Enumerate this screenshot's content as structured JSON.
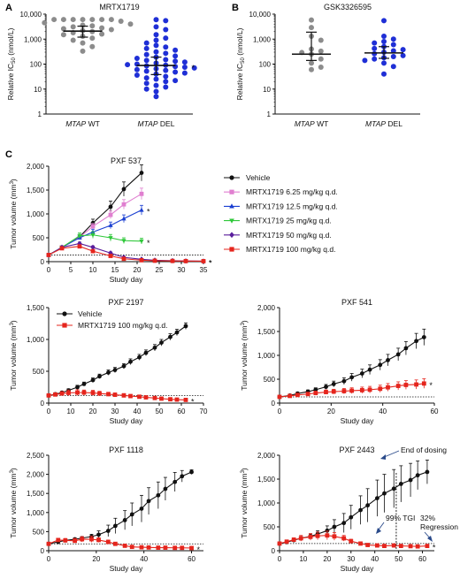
{
  "colors": {
    "black": "#111111",
    "gray": "#8c8c8c",
    "blue": "#1f2fd6",
    "pink": "#e07fd0",
    "blue2": "#1a3fd1",
    "green": "#2fc83a",
    "purple": "#5a1e9c",
    "red": "#e5251d"
  },
  "panel_labels": [
    "A",
    "B",
    "C"
  ],
  "annotations": {
    "end_of_dosing": "End of dosing",
    "tgi": "99% TGI",
    "regression_1": "32%",
    "regression_2": "Regression",
    "star": "*"
  },
  "chart_data": [
    {
      "id": "A",
      "type": "scatter",
      "title": "MRTX1719",
      "ylabel": "Relative IC50 (nmol/L)",
      "yscale": "log",
      "ylim": [
        1,
        10000
      ],
      "yticks": [
        "1",
        "10",
        "100",
        "1,000",
        "10,000"
      ],
      "categories": [
        {
          "label": "MTAP WT",
          "italic": "MTAP",
          "rest": " WT",
          "color": "gray",
          "median": 2100,
          "q1": 1200,
          "q3": 3300,
          "points": [
            6100,
            6100,
            6100,
            6100,
            6100,
            6100,
            6100,
            5200,
            4500,
            4000,
            3600,
            3400,
            3100,
            2800,
            2600,
            2400,
            2200,
            2000,
            1800,
            1600,
            1500,
            1300,
            1100,
            900,
            700,
            500,
            330
          ]
        },
        {
          "label": "MTAP DEL",
          "italic": "MTAP",
          "rest": " DEL",
          "color": "blue",
          "median": 88,
          "q1": 38,
          "q3": 190,
          "sig": "*",
          "points": [
            6000,
            5500,
            3100,
            2400,
            1500,
            1100,
            900,
            700,
            560,
            480,
            420,
            360,
            310,
            270,
            240,
            210,
            190,
            170,
            150,
            140,
            130,
            120,
            110,
            100,
            95,
            90,
            85,
            80,
            75,
            70,
            65,
            60,
            56,
            52,
            48,
            44,
            40,
            36,
            32,
            28,
            25,
            22,
            20,
            17,
            14,
            12,
            10,
            8,
            5
          ]
        }
      ]
    },
    {
      "id": "B",
      "type": "scatter",
      "title": "GSK3326595",
      "ylabel": "Relative IC50 (nmol/L)",
      "yscale": "log",
      "ylim": [
        1,
        10000
      ],
      "yticks": [
        "1",
        "10",
        "100",
        "1,000",
        "10,000"
      ],
      "categories": [
        {
          "label": "MTAP WT",
          "italic": "MTAP",
          "rest": " WT",
          "color": "gray",
          "median": 250,
          "q1": 140,
          "q3": 1900,
          "points": [
            5800,
            2900,
            1300,
            900,
            400,
            330,
            290,
            250,
            160,
            110,
            75,
            60
          ]
        },
        {
          "label": "MTAP DEL",
          "italic": "MTAP",
          "rest": " DEL",
          "color": "blue",
          "median": 280,
          "q1": 170,
          "q3": 500,
          "points": [
            5500,
            1300,
            1000,
            800,
            700,
            600,
            500,
            420,
            380,
            340,
            300,
            260,
            220,
            200,
            180,
            160,
            140,
            110,
            80,
            40
          ]
        }
      ]
    },
    {
      "id": "C1",
      "type": "line",
      "title": "PXF 537",
      "xlabel": "Study day",
      "ylabel": "Tumor volume (mm3)",
      "xlim": [
        0,
        35
      ],
      "xticks": [
        0,
        5,
        10,
        15,
        20,
        25,
        30,
        35
      ],
      "ylim": [
        0,
        2000
      ],
      "yticks": [
        "0",
        "500",
        "1,000",
        "1,500",
        "2,000"
      ],
      "series": [
        {
          "name": "Vehicle",
          "color": "black",
          "marker": "circle",
          "x": [
            0,
            3,
            7,
            10,
            14,
            17,
            21
          ],
          "y": [
            140,
            300,
            520,
            810,
            1150,
            1520,
            1860
          ],
          "err": [
            20,
            30,
            50,
            80,
            120,
            150,
            170
          ]
        },
        {
          "name": "MRTX1719 6.25 mg/kg q.d.",
          "color": "pink",
          "marker": "square",
          "x": [
            0,
            3,
            7,
            10,
            14,
            17,
            21
          ],
          "y": [
            140,
            300,
            510,
            740,
            980,
            1200,
            1420
          ],
          "err": [
            20,
            25,
            40,
            60,
            80,
            100,
            120
          ]
        },
        {
          "name": "MRTX1719 12.5 mg/kg q.d.",
          "color": "blue2",
          "marker": "triangle",
          "x": [
            0,
            3,
            7,
            10,
            14,
            17,
            21
          ],
          "y": [
            140,
            300,
            500,
            620,
            760,
            900,
            1080
          ],
          "err": [
            20,
            25,
            40,
            60,
            70,
            80,
            100
          ],
          "sig": "*"
        },
        {
          "name": "MRTX1719 25 mg/kg q.d.",
          "color": "green",
          "marker": "tri-down",
          "x": [
            0,
            3,
            7,
            10,
            14,
            17,
            21
          ],
          "y": [
            140,
            300,
            540,
            560,
            500,
            440,
            430
          ],
          "err": [
            20,
            30,
            60,
            70,
            70,
            60,
            60
          ],
          "sig": "*"
        },
        {
          "name": "MRTX1719 50 mg/kg q.d.",
          "color": "purple",
          "marker": "diamond",
          "x": [
            0,
            3,
            7,
            10,
            14,
            17,
            21,
            24,
            28,
            31,
            35
          ],
          "y": [
            140,
            300,
            380,
            300,
            180,
            90,
            50,
            30,
            20,
            15,
            10
          ],
          "err": [
            20,
            25,
            30,
            30,
            25,
            20,
            10,
            8,
            6,
            5,
            5
          ],
          "sig": "*"
        },
        {
          "name": "MRTX1719 100 mg/kg q.d.",
          "color": "red",
          "marker": "square",
          "x": [
            0,
            3,
            7,
            10,
            14,
            17,
            21,
            24,
            28,
            31,
            35
          ],
          "y": [
            140,
            280,
            320,
            220,
            120,
            60,
            30,
            20,
            15,
            12,
            10
          ],
          "err": [
            20,
            25,
            30,
            25,
            20,
            10,
            8,
            6,
            5,
            4,
            4
          ],
          "sig": "*"
        }
      ]
    },
    {
      "id": "C2",
      "type": "line",
      "title": "PXF 2197",
      "xlabel": "Study day",
      "ylabel": "Tumor volume (mm3)",
      "xlim": [
        0,
        70
      ],
      "xticks": [
        0,
        10,
        20,
        30,
        40,
        50,
        60,
        70
      ],
      "ylim": [
        0,
        1500
      ],
      "yticks": [
        "0",
        "500",
        "1,000",
        "1,500"
      ],
      "series": [
        {
          "name": "Vehicle",
          "color": "black",
          "marker": "circle",
          "x": [
            0,
            3,
            6,
            9,
            13,
            16,
            20,
            23,
            27,
            30,
            34,
            37,
            41,
            44,
            48,
            51,
            55,
            58,
            62
          ],
          "y": [
            120,
            140,
            165,
            200,
            250,
            300,
            360,
            420,
            480,
            520,
            580,
            650,
            720,
            790,
            870,
            950,
            1040,
            1110,
            1210
          ],
          "err": [
            15,
            15,
            20,
            25,
            30,
            30,
            35,
            35,
            40,
            40,
            40,
            45,
            45,
            45,
            50,
            50,
            50,
            50,
            50
          ]
        },
        {
          "name": "MRTX1719 100 mg/kg q.d.",
          "color": "red",
          "marker": "square",
          "x": [
            0,
            3,
            6,
            9,
            13,
            16,
            20,
            23,
            27,
            30,
            34,
            37,
            41,
            44,
            48,
            51,
            55,
            58,
            62
          ],
          "y": [
            120,
            135,
            150,
            160,
            165,
            165,
            160,
            150,
            140,
            130,
            120,
            110,
            100,
            90,
            80,
            70,
            60,
            55,
            50
          ],
          "err": [
            15,
            20,
            30,
            45,
            45,
            40,
            40,
            35,
            30,
            30,
            30,
            25,
            25,
            20,
            20,
            20,
            20,
            15,
            15
          ],
          "sig": "*"
        }
      ]
    },
    {
      "id": "C3",
      "type": "line",
      "title": "PXF 541",
      "xlabel": "Study day",
      "ylabel": "Tumor volume (mm3)",
      "xlim": [
        0,
        60
      ],
      "xticks": [
        0,
        20,
        40,
        60
      ],
      "ylim": [
        0,
        2000
      ],
      "yticks": [
        "0",
        "500",
        "1,000",
        "1,500",
        "2,000"
      ],
      "series": [
        {
          "name": "Vehicle",
          "color": "black",
          "marker": "circle",
          "x": [
            0,
            4,
            7,
            11,
            14,
            18,
            21,
            25,
            28,
            32,
            35,
            39,
            42,
            46,
            49,
            53,
            56
          ],
          "y": [
            130,
            160,
            200,
            240,
            280,
            340,
            400,
            460,
            540,
            620,
            700,
            800,
            900,
            1020,
            1150,
            1300,
            1380
          ],
          "err": [
            20,
            25,
            30,
            35,
            40,
            50,
            60,
            70,
            80,
            90,
            100,
            110,
            120,
            130,
            140,
            160,
            170
          ]
        },
        {
          "name": "MRTX1719 100 mg/kg q.d.",
          "color": "red",
          "marker": "square",
          "x": [
            0,
            4,
            7,
            11,
            14,
            18,
            21,
            25,
            28,
            32,
            35,
            39,
            42,
            46,
            49,
            53,
            56
          ],
          "y": [
            130,
            150,
            170,
            190,
            210,
            230,
            240,
            250,
            260,
            270,
            280,
            300,
            330,
            360,
            380,
            390,
            410
          ],
          "err": [
            20,
            25,
            30,
            35,
            40,
            45,
            50,
            55,
            60,
            65,
            70,
            75,
            80,
            85,
            90,
            95,
            100
          ],
          "sig": "*"
        }
      ]
    },
    {
      "id": "C4",
      "type": "line",
      "title": "PXF 1118",
      "xlabel": "Study day",
      "ylabel": "Tumor volume (mm3)",
      "xlim": [
        0,
        65
      ],
      "xticks": [
        0,
        20,
        40,
        60
      ],
      "ylim": [
        0,
        2500
      ],
      "yticks": [
        "0",
        "500",
        "1,000",
        "1,500",
        "2,000",
        "2,500"
      ],
      "series": [
        {
          "name": "Vehicle",
          "color": "black",
          "marker": "circle",
          "x": [
            0,
            4,
            7,
            11,
            14,
            18,
            21,
            25,
            28,
            32,
            35,
            39,
            42,
            46,
            49,
            53,
            56,
            60
          ],
          "y": [
            180,
            230,
            270,
            300,
            330,
            370,
            420,
            520,
            650,
            800,
            950,
            1100,
            1300,
            1450,
            1620,
            1800,
            1950,
            2060
          ],
          "err": [
            20,
            25,
            30,
            35,
            40,
            60,
            100,
            150,
            200,
            250,
            300,
            350,
            350,
            350,
            300,
            250,
            150,
            60
          ]
        },
        {
          "name": "MRTX1719 100 mg/kg q.d.",
          "color": "red",
          "marker": "square",
          "x": [
            0,
            4,
            7,
            11,
            14,
            18,
            21,
            25,
            28,
            32,
            35,
            39,
            42,
            46,
            49,
            53,
            56,
            60
          ],
          "y": [
            180,
            280,
            270,
            260,
            300,
            300,
            280,
            230,
            180,
            130,
            100,
            90,
            85,
            80,
            80,
            75,
            75,
            70
          ],
          "err": [
            20,
            40,
            50,
            60,
            70,
            80,
            60,
            50,
            40,
            30,
            25,
            20,
            15,
            15,
            15,
            12,
            12,
            10
          ],
          "sig": "*"
        }
      ]
    },
    {
      "id": "C5",
      "type": "line",
      "title": "PXF 2443",
      "xlabel": "Study day",
      "ylabel": "Tumor volume (mm3)",
      "xlim": [
        0,
        65
      ],
      "xticks": [
        0,
        10,
        20,
        30,
        40,
        50,
        60
      ],
      "ylim": [
        0,
        2000
      ],
      "yticks": [
        "0",
        "500",
        "1,000",
        "1,500",
        "2,000"
      ],
      "dosing_end_x": 49,
      "series": [
        {
          "name": "Vehicle",
          "color": "black",
          "marker": "circle",
          "x": [
            0,
            3,
            6,
            9,
            13,
            16,
            20,
            23,
            27,
            30,
            34,
            37,
            41,
            44,
            48,
            51,
            55,
            58,
            62
          ],
          "y": [
            150,
            180,
            220,
            260,
            300,
            350,
            420,
            500,
            580,
            700,
            850,
            950,
            1100,
            1200,
            1300,
            1400,
            1480,
            1580,
            1650
          ],
          "err": [
            20,
            25,
            30,
            40,
            50,
            70,
            100,
            150,
            200,
            250,
            300,
            350,
            380,
            400,
            400,
            380,
            350,
            300,
            250
          ]
        },
        {
          "name": "MRTX1719 100 mg/kg q.d.",
          "color": "red",
          "marker": "square",
          "x": [
            0,
            3,
            6,
            9,
            13,
            16,
            20,
            23,
            27,
            30,
            34,
            37,
            41,
            44,
            48,
            51,
            55,
            58,
            62
          ],
          "y": [
            150,
            190,
            230,
            260,
            290,
            310,
            320,
            300,
            260,
            200,
            150,
            120,
            110,
            100,
            110,
            100,
            95,
            90,
            100
          ],
          "err": [
            20,
            25,
            40,
            60,
            70,
            80,
            90,
            80,
            60,
            40,
            30,
            25,
            20,
            20,
            20,
            15,
            15,
            15,
            15
          ],
          "sig": "*"
        }
      ]
    }
  ]
}
